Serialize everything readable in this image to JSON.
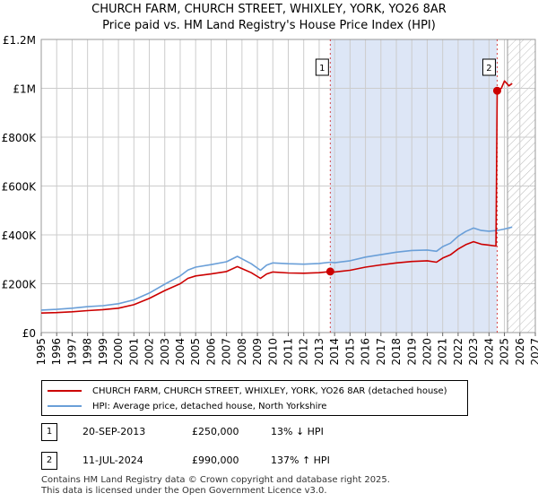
{
  "title_line1": "CHURCH FARM, CHURCH STREET, WHIXLEY, YORK, YO26 8AR",
  "title_line2": "Price paid vs. HM Land Registry's House Price Index (HPI)",
  "colors": {
    "price": "#cc0000",
    "hpi": "#6a9fd8",
    "band": "#dde6f6",
    "grid": "#cccccc",
    "marker_line": "#cc0000"
  },
  "chart_data": {
    "type": "line",
    "title": "Price paid vs. HM Land Registry's House Price Index (HPI)",
    "xlabel": "",
    "ylabel": "",
    "xlim": [
      1995,
      2027
    ],
    "ylim": [
      0,
      1200000
    ],
    "x_ticks": [
      "1995",
      "1996",
      "1997",
      "1998",
      "1999",
      "2000",
      "2001",
      "2002",
      "2003",
      "2004",
      "2005",
      "2006",
      "2007",
      "2008",
      "2009",
      "2010",
      "2011",
      "2012",
      "2013",
      "2014",
      "2015",
      "2016",
      "2017",
      "2018",
      "2019",
      "2020",
      "2021",
      "2022",
      "2023",
      "2024",
      "2025",
      "2026",
      "2027"
    ],
    "y_ticks": [
      {
        "value": 0,
        "label": "£0"
      },
      {
        "value": 200000,
        "label": "£200K"
      },
      {
        "value": 400000,
        "label": "£400K"
      },
      {
        "value": 600000,
        "label": "£600K"
      },
      {
        "value": 800000,
        "label": "£800K"
      },
      {
        "value": 1000000,
        "label": "£1M"
      },
      {
        "value": 1200000,
        "label": "£1.2M"
      }
    ],
    "grid": true,
    "shaded_period": [
      2013.72,
      2024.53
    ],
    "forecast_start": 2025.2,
    "series": [
      {
        "name": "CHURCH FARM, CHURCH STREET, WHIXLEY, YORK, YO26 8AR (detached house)",
        "color": "#cc0000",
        "x": [
          1995,
          1996,
          1997,
          1998,
          1999,
          2000,
          2001,
          2002,
          2003,
          2004,
          2004.5,
          2005,
          2006,
          2007,
          2007.7,
          2008,
          2008.6,
          2009.2,
          2009.6,
          2010,
          2011,
          2012,
          2013,
          2013.72,
          2014,
          2015,
          2016,
          2017,
          2018,
          2019,
          2020,
          2020.6,
          2021,
          2021.5,
          2022,
          2022.5,
          2023,
          2023.5,
          2024.0,
          2024.45,
          2024.53,
          2024.6,
          2024.8,
          2025.0,
          2025.3,
          2025.5
        ],
        "y": [
          80000,
          82000,
          85000,
          90000,
          94000,
          100000,
          114000,
          140000,
          172000,
          200000,
          222000,
          232000,
          240000,
          250000,
          270000,
          262000,
          245000,
          222000,
          240000,
          248000,
          244000,
          243000,
          245000,
          250000,
          248000,
          255000,
          268000,
          277000,
          285000,
          291000,
          294000,
          288000,
          305000,
          318000,
          342000,
          360000,
          372000,
          362000,
          358000,
          354000,
          990000,
          995000,
          1000000,
          1030000,
          1010000,
          1020000
        ]
      },
      {
        "name": "HPI: Average price, detached house, North Yorkshire",
        "color": "#6a9fd8",
        "x": [
          1995,
          1996,
          1997,
          1998,
          1999,
          2000,
          2001,
          2002,
          2003,
          2004,
          2004.5,
          2005,
          2006,
          2007,
          2007.7,
          2008,
          2008.6,
          2009.2,
          2009.6,
          2010,
          2011,
          2012,
          2013,
          2013.72,
          2014,
          2015,
          2016,
          2017,
          2018,
          2019,
          2020,
          2020.6,
          2021,
          2021.5,
          2022,
          2022.5,
          2023,
          2023.5,
          2024.0,
          2024.53,
          2025.0,
          2025.5
        ],
        "y": [
          92000,
          95000,
          100000,
          106000,
          110000,
          118000,
          134000,
          162000,
          198000,
          232000,
          256000,
          268000,
          278000,
          290000,
          312000,
          302000,
          282000,
          255000,
          276000,
          285000,
          282000,
          280000,
          283000,
          288000,
          286000,
          294000,
          309000,
          319000,
          329000,
          336000,
          338000,
          333000,
          352000,
          366000,
          394000,
          414000,
          428000,
          418000,
          415000,
          418000,
          424000,
          432000
        ]
      }
    ],
    "annotations": [
      {
        "label": "1",
        "x": 2013.72,
        "y": 250000
      },
      {
        "label": "2",
        "x": 2024.53,
        "y": 990000
      }
    ],
    "legend": "bottom"
  },
  "legend_items": {
    "property_label": "CHURCH FARM, CHURCH STREET, WHIXLEY, YORK, YO26 8AR (detached house)",
    "hpi_label": "HPI: Average price, detached house, North Yorkshire"
  },
  "sales": [
    {
      "num": "1",
      "date": "20-SEP-2013",
      "price": "£250,000",
      "hpi": "13% ↓ HPI"
    },
    {
      "num": "2",
      "date": "11-JUL-2024",
      "price": "£990,000",
      "hpi": "137% ↑ HPI"
    }
  ],
  "footer_line1": "Contains HM Land Registry data © Crown copyright and database right 2025.",
  "footer_line2": "This data is licensed under the Open Government Licence v3.0."
}
